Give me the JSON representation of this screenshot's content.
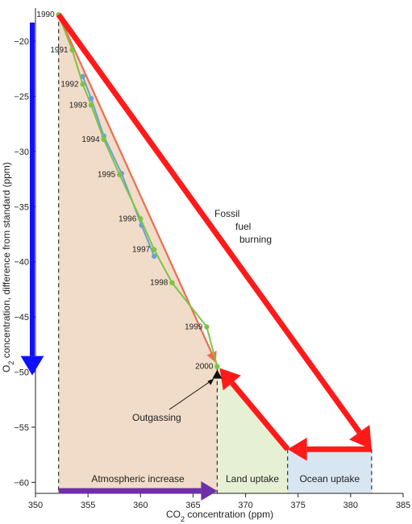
{
  "chart_data": {
    "type": "line",
    "xlabel_parts": [
      "CO",
      "2",
      " concentration (ppm)"
    ],
    "ylabel_parts": [
      "O",
      "2",
      " concentration, difference from standard (ppm)"
    ],
    "xlim": [
      350,
      385
    ],
    "ylim": [
      -61,
      -17
    ],
    "xticks": [
      350,
      355,
      360,
      365,
      370,
      375,
      380,
      385
    ],
    "yticks": [
      -20,
      -25,
      -30,
      -35,
      -40,
      -45,
      -50,
      -55,
      -60
    ],
    "grid": false,
    "series": [
      {
        "color": "#6c9fd6",
        "points": [
          [
            354.5,
            -23.2
          ],
          [
            355.3,
            -25.2
          ],
          [
            356.5,
            -28.6
          ],
          [
            358.2,
            -32.0
          ],
          [
            360.1,
            -36.7
          ],
          [
            361.3,
            -39.5
          ]
        ]
      },
      {
        "color": "#7cc443",
        "points": [
          [
            352.2,
            -17.6
          ],
          [
            353.5,
            -20.8
          ],
          [
            354.5,
            -23.9
          ],
          [
            355.3,
            -25.8
          ],
          [
            356.5,
            -28.9
          ],
          [
            358.0,
            -32.1
          ],
          [
            360.0,
            -36.1
          ],
          [
            361.3,
            -38.9
          ],
          [
            363.0,
            -41.9
          ],
          [
            366.3,
            -45.9
          ],
          [
            367.3,
            -49.5
          ]
        ]
      }
    ],
    "year_labels": [
      {
        "text": "1990",
        "x": 352.2,
        "y": -17.6
      },
      {
        "text": "1991",
        "x": 353.5,
        "y": -20.8
      },
      {
        "text": "1992",
        "x": 354.5,
        "y": -23.9
      },
      {
        "text": "1993",
        "x": 355.3,
        "y": -25.8
      },
      {
        "text": "1994",
        "x": 356.5,
        "y": -28.9
      },
      {
        "text": "1995",
        "x": 358.0,
        "y": -32.1
      },
      {
        "text": "1996",
        "x": 360.0,
        "y": -36.1
      },
      {
        "text": "1997",
        "x": 361.3,
        "y": -38.9
      },
      {
        "text": "1998",
        "x": 363.0,
        "y": -41.9
      },
      {
        "text": "1999",
        "x": 366.3,
        "y": -45.9
      },
      {
        "text": "2000",
        "x": 367.3,
        "y": -49.5
      }
    ],
    "regions": [
      {
        "label": "Atmospheric increase",
        "x0": 352.2,
        "x1": 367.3,
        "color": "#f0dcc8"
      },
      {
        "label": "Land uptake",
        "x0": 367.3,
        "x1": 374.0,
        "color": "#e6f0d4"
      },
      {
        "label": "Ocean uptake",
        "x0": 374.0,
        "x1": 382.0,
        "color": "#d8e6f2"
      }
    ],
    "annotations": {
      "fossil_fuel_lines": [
        "Fossil",
        "fuel",
        "burning"
      ],
      "outgassing": "Outgassing"
    },
    "key_points": {
      "start": {
        "x": 352.2,
        "y": -17.6
      },
      "end": {
        "x": 367.3,
        "y": -49.5
      },
      "fossil_end": {
        "x": 382.0,
        "y": -57.0
      },
      "land_corner": {
        "x": 374.0,
        "y": -57.0
      },
      "outgassing_point": {
        "x": 367.3,
        "y": -50.3
      }
    },
    "colors": {
      "big_red_arrow": "#ff1a1a",
      "trend_arrow": "#f26a4f",
      "blue_arrow": "#1010ff",
      "purple_arrow": "#6f2fa8"
    }
  }
}
